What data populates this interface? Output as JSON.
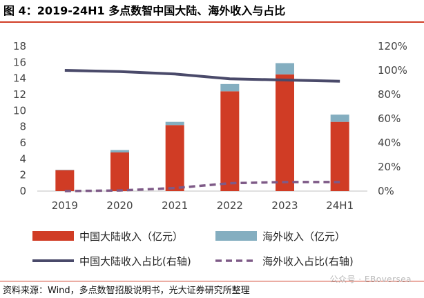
{
  "title": "图 4：2019-24H1 多点数智中国大陆、海外收入与占比",
  "source": "资料来源：Wind，多点数智招股说明书，光大证券研究所整理",
  "watermark": "公众号 · EBoversea",
  "chart_data": {
    "type": "bar",
    "stacked": true,
    "categories": [
      "2019",
      "2020",
      "2021",
      "2022",
      "2023",
      "24H1"
    ],
    "series": [
      {
        "name": "中国大陆收入（亿元）",
        "axis": "left",
        "type": "bar",
        "color": "#d03c25",
        "values": [
          2.6,
          4.8,
          8.2,
          12.4,
          14.5,
          8.6
        ]
      },
      {
        "name": "海外收入（亿元）",
        "axis": "left",
        "type": "bar",
        "color": "#84aec0",
        "values": [
          0.05,
          0.3,
          0.4,
          0.9,
          1.4,
          0.9
        ]
      },
      {
        "name": "中国大陆收入占比(右轴)",
        "axis": "right",
        "type": "line",
        "style": "solid",
        "color": "#4a4a6a",
        "values": [
          100,
          99,
          97,
          93,
          92,
          91
        ]
      },
      {
        "name": "海外收入占比(右轴)",
        "axis": "right",
        "type": "line",
        "style": "dashed",
        "color": "#7e5a87",
        "values": [
          0,
          0.5,
          2.5,
          6.5,
          7.5,
          7.5
        ]
      }
    ],
    "y_left": {
      "min": 0,
      "max": 18,
      "step": 2,
      "tick_labels": [
        "0",
        "2",
        "4",
        "6",
        "8",
        "10",
        "12",
        "14",
        "16",
        "18"
      ]
    },
    "y_right": {
      "min": 0,
      "max": 120,
      "step": 20,
      "tick_labels": [
        "0%",
        "20%",
        "40%",
        "60%",
        "80%",
        "100%",
        "120%"
      ]
    },
    "grid": false,
    "legend": "bottom"
  }
}
